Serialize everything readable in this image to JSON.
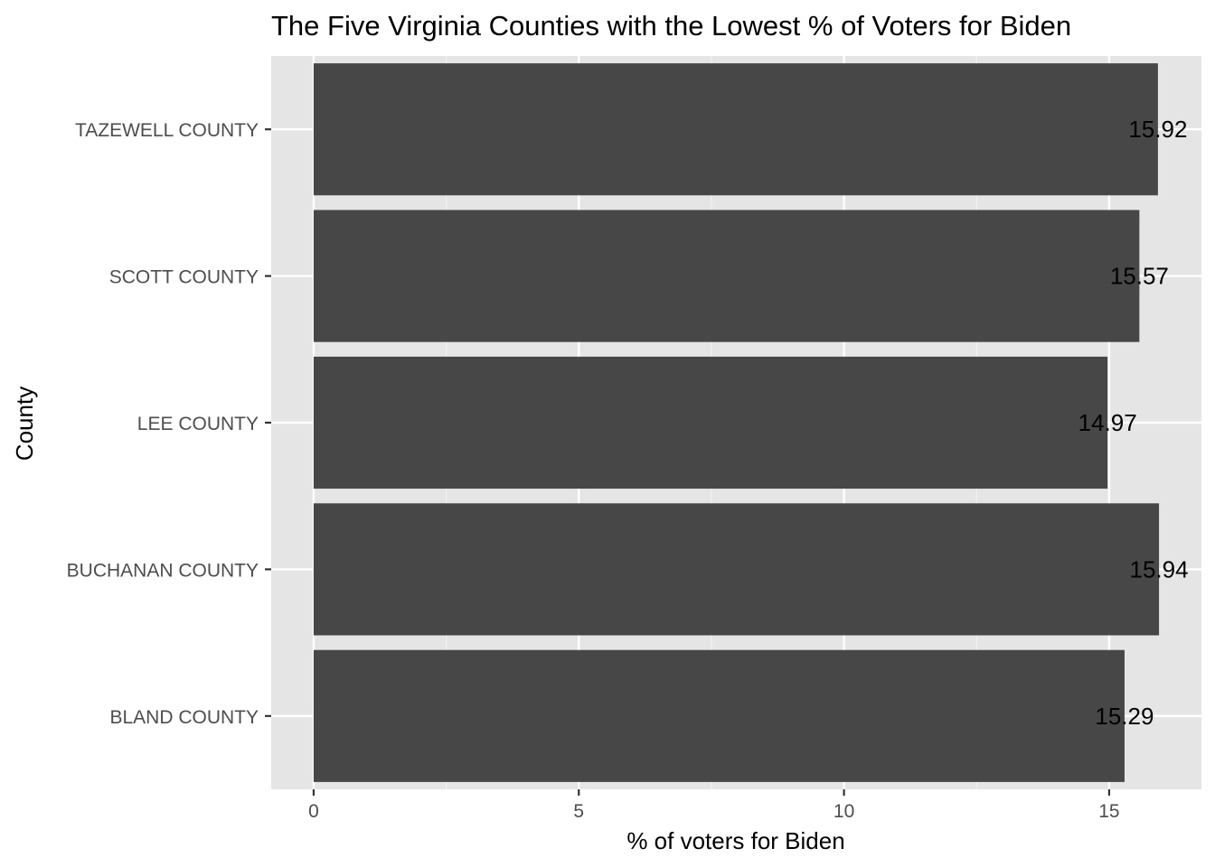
{
  "chart_data": {
    "type": "bar",
    "orientation": "horizontal",
    "title": "The Five Virginia Counties with the Lowest % of Voters for Biden",
    "xlabel": "% of voters for Biden",
    "ylabel": "County",
    "categories": [
      "TAZEWELL COUNTY",
      "SCOTT COUNTY",
      "LEE COUNTY",
      "BUCHANAN COUNTY",
      "BLAND COUNTY"
    ],
    "values": [
      15.92,
      15.57,
      14.97,
      15.94,
      15.29
    ],
    "data_labels": [
      "15.92",
      "15.57",
      "14.97",
      "15.94",
      "15.29"
    ],
    "x_ticks": [
      0,
      5,
      10,
      15
    ],
    "x_tick_labels": [
      "0",
      "5",
      "10",
      "15"
    ],
    "xlim": [
      -0.8,
      16.74
    ],
    "grid": true,
    "colors": {
      "bar": "#474747",
      "panel": "#e5e5e5",
      "grid_major": "#ffffff",
      "grid_minor": "#f2f2f2",
      "tick": "#333333"
    }
  }
}
